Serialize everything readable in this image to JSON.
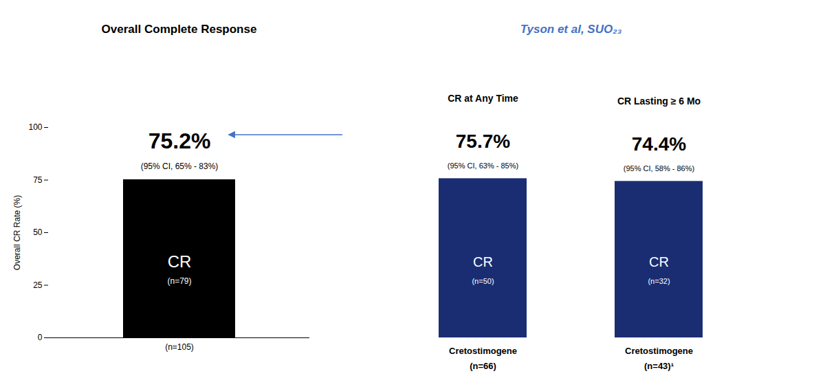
{
  "chart_data": [
    {
      "type": "bar",
      "title": "Overall Complete Response",
      "y_label": "Overall CR Rate (%)",
      "categories": [
        "(n=105)"
      ],
      "values": [
        75.2
      ],
      "color": "#000000",
      "data_labels": true,
      "value_labels": [
        "75.2%"
      ],
      "ci_labels": [
        "(95% CI, 65% - 83%)"
      ],
      "bar_labels": [
        "CR"
      ],
      "bar_sublabels": [
        "(n=79)"
      ],
      "ylim": [
        0,
        100
      ],
      "yticks": [
        0,
        25,
        50,
        75,
        100
      ]
    },
    {
      "type": "bar",
      "title": "Tyson et al, SUO₂₃",
      "title_color": "#4472c4",
      "headers": [
        "CR at Any Time",
        "CR Lasting ≥ 6 Mo"
      ],
      "categories": [
        "Cretostimogene",
        "Cretostimogene"
      ],
      "category_sublabels": [
        "(n=66)",
        "(n=43)¹"
      ],
      "values": [
        75.7,
        74.4
      ],
      "colors": [
        "#1b2d72",
        "#1b2d72"
      ],
      "data_labels": true,
      "value_labels": [
        "75.7%",
        "74.4%"
      ],
      "ci_labels": [
        "(95% CI, 63% - 85%)",
        "(95% CI, 58% - 86%)"
      ],
      "bar_labels": [
        "CR",
        "CR"
      ],
      "bar_sublabels": [
        "(n=50)",
        "(n=32)"
      ],
      "ylim": [
        0,
        100
      ],
      "tick_labels": "x"
    }
  ]
}
